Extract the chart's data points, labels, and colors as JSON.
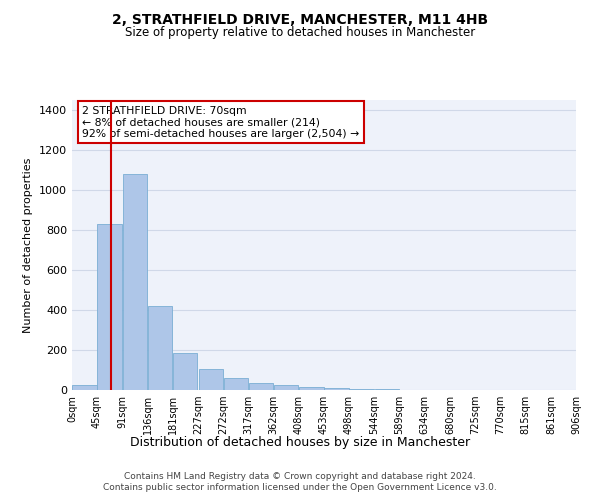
{
  "title1": "2, STRATHFIELD DRIVE, MANCHESTER, M11 4HB",
  "title2": "Size of property relative to detached houses in Manchester",
  "xlabel": "Distribution of detached houses by size in Manchester",
  "ylabel": "Number of detached properties",
  "footer1": "Contains HM Land Registry data © Crown copyright and database right 2024.",
  "footer2": "Contains public sector information licensed under the Open Government Licence v3.0.",
  "annotation_line1": "2 STRATHFIELD DRIVE: 70sqm",
  "annotation_line2": "← 8% of detached houses are smaller (214)",
  "annotation_line3": "92% of semi-detached houses are larger (2,504) →",
  "property_size_sqm": 70,
  "bin_edges": [
    0,
    45,
    91,
    136,
    181,
    227,
    272,
    317,
    362,
    408,
    453,
    498,
    544,
    589,
    634,
    680,
    725,
    770,
    815,
    861,
    906
  ],
  "bar_heights": [
    25,
    830,
    1080,
    420,
    185,
    105,
    60,
    35,
    25,
    15,
    10,
    5,
    3,
    2,
    1,
    0,
    0,
    0,
    0,
    0
  ],
  "bar_color": "#aec6e8",
  "bar_edge_color": "#7aaed4",
  "red_line_color": "#cc0000",
  "grid_color": "#d0d8e8",
  "background_color": "#eef2fa",
  "annotation_box_color": "#ffffff",
  "annotation_box_edge": "#cc0000",
  "ylim": [
    0,
    1450
  ],
  "yticks": [
    0,
    200,
    400,
    600,
    800,
    1000,
    1200,
    1400
  ],
  "tick_labels": [
    "0sqm",
    "45sqm",
    "91sqm",
    "136sqm",
    "181sqm",
    "227sqm",
    "272sqm",
    "317sqm",
    "362sqm",
    "408sqm",
    "453sqm",
    "498sqm",
    "544sqm",
    "589sqm",
    "634sqm",
    "680sqm",
    "725sqm",
    "770sqm",
    "815sqm",
    "861sqm",
    "906sqm"
  ]
}
